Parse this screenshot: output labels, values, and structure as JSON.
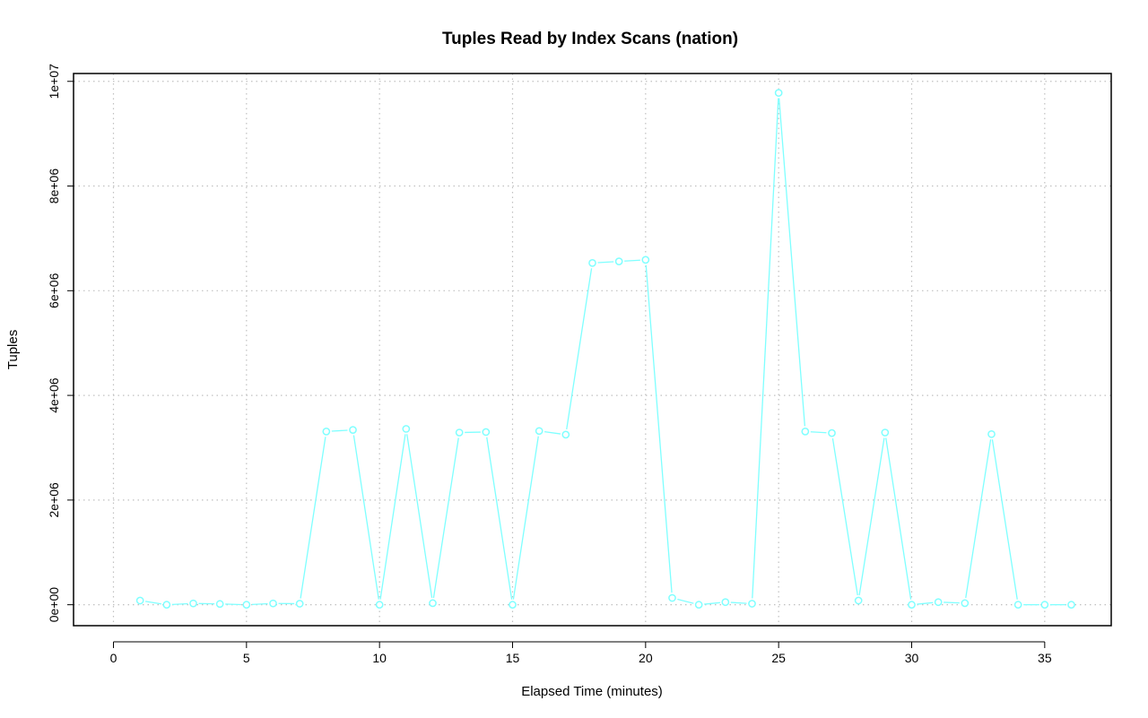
{
  "chart_data": {
    "type": "line",
    "title": "Tuples Read by Index Scans (nation)",
    "xlabel": "Elapsed Time (minutes)",
    "ylabel": "Tuples",
    "xlim": [
      -1.5,
      37.5
    ],
    "ylim": [
      -400000,
      10150000
    ],
    "x_ticks": [
      0,
      5,
      10,
      15,
      20,
      25,
      30,
      35
    ],
    "x_tick_labels": [
      "0",
      "5",
      "10",
      "15",
      "20",
      "25",
      "30",
      "35"
    ],
    "y_ticks": [
      0,
      2000000,
      4000000,
      6000000,
      8000000,
      10000000
    ],
    "y_tick_labels": [
      "0e+00",
      "2e+06",
      "4e+06",
      "6e+06",
      "8e+06",
      "1e+07"
    ],
    "grid": true,
    "series": [
      {
        "color": "#7fffff",
        "x": [
          1,
          2,
          3,
          4,
          5,
          6,
          7,
          8,
          9,
          10,
          11,
          12,
          13,
          14,
          15,
          16,
          17,
          18,
          19,
          20,
          21,
          22,
          23,
          24,
          25,
          26,
          27,
          28,
          29,
          30,
          31,
          32,
          33,
          34,
          35,
          36
        ],
        "y": [
          80000,
          0,
          25000,
          15000,
          0,
          25000,
          20000,
          3310000,
          3340000,
          0,
          3360000,
          30000,
          3290000,
          3300000,
          0,
          3320000,
          3250000,
          6530000,
          6560000,
          6590000,
          130000,
          0,
          50000,
          20000,
          9780000,
          3310000,
          3280000,
          80000,
          3290000,
          0,
          50000,
          30000,
          3260000,
          0,
          0,
          0
        ]
      }
    ]
  }
}
